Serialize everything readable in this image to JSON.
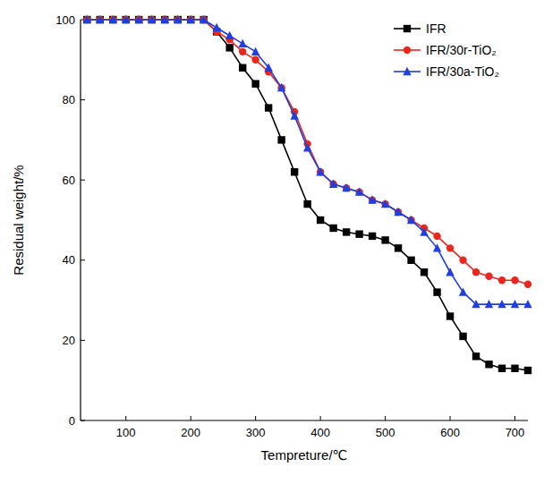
{
  "chart_data": {
    "type": "line",
    "x_label": "Tempreture/℃",
    "y_label": "Residual weight/%",
    "x": [
      40,
      60,
      80,
      100,
      120,
      140,
      160,
      180,
      200,
      220,
      240,
      260,
      280,
      300,
      320,
      340,
      360,
      380,
      400,
      420,
      440,
      460,
      480,
      500,
      520,
      540,
      560,
      580,
      600,
      620,
      640,
      660,
      680,
      700,
      720
    ],
    "series": [
      {
        "name": "IFR",
        "color": "#000000",
        "marker": "square",
        "line_style": "solid",
        "values": [
          100,
          100,
          100,
          100,
          100,
          100,
          100,
          100,
          100,
          100,
          97,
          93,
          88,
          84,
          78,
          70,
          62,
          54,
          50,
          48,
          47,
          46.5,
          46,
          45,
          43,
          40,
          37,
          32,
          26,
          21,
          16,
          14,
          13,
          13,
          12.5
        ]
      },
      {
        "name": "IFR/30r-TiO₂",
        "color": "#e8281e",
        "marker": "circle",
        "line_style": "solid",
        "values": [
          100,
          100,
          100,
          100,
          100,
          100,
          100,
          100,
          100,
          100,
          97,
          95,
          92,
          90,
          87,
          83,
          77,
          69,
          62,
          59,
          58,
          57,
          55,
          54,
          52,
          50,
          48,
          46,
          43,
          40,
          37,
          36,
          35,
          35,
          34
        ]
      },
      {
        "name": "IFR/30a-TiO₂",
        "color": "#1f3fe0",
        "marker": "triangle",
        "line_style": "solid",
        "values": [
          100,
          100,
          100,
          100,
          100,
          100,
          100,
          100,
          100,
          100,
          98,
          96,
          94,
          92,
          88,
          83,
          76,
          68,
          62,
          59,
          58,
          57,
          55,
          54,
          52,
          50,
          47,
          43,
          37,
          32,
          29,
          29,
          29,
          29,
          29
        ]
      }
    ],
    "xlim": [
      30,
      720
    ],
    "xticks": [
      100,
      200,
      300,
      400,
      500,
      600,
      700
    ],
    "ylim": [
      0,
      100
    ],
    "yticks": [
      0,
      20,
      40,
      60,
      80,
      100
    ],
    "grid": false,
    "legend": "top-right"
  }
}
